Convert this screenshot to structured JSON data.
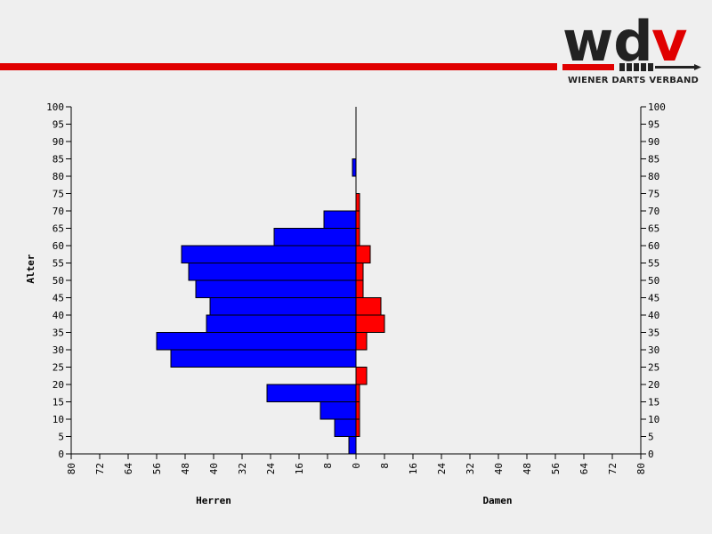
{
  "logo": {
    "mark": "wdv",
    "subtitle": "WIENER DARTS VERBAND",
    "colors": {
      "dark": "#222222",
      "red": "#e00000"
    }
  },
  "chart_data": {
    "type": "bar",
    "orientation": "horizontal-pyramid",
    "ylabel": "Alter",
    "left_label": "Herren",
    "right_label": "Damen",
    "age_groups": [
      0,
      5,
      10,
      15,
      20,
      25,
      30,
      35,
      40,
      45,
      50,
      55,
      60,
      65,
      70,
      75,
      80,
      85,
      90,
      95
    ],
    "series": [
      {
        "name": "Herren",
        "color": "#0000ff",
        "values": [
          2,
          6,
          10,
          25,
          0,
          52,
          56,
          42,
          41,
          45,
          47,
          49,
          23,
          9,
          0,
          0,
          1,
          0,
          0,
          0
        ]
      },
      {
        "name": "Damen",
        "color": "#ff0000",
        "values": [
          0,
          1,
          1,
          1,
          3,
          0,
          3,
          8,
          7,
          2,
          2,
          4,
          1,
          1,
          1,
          0,
          0,
          0,
          0,
          0
        ]
      }
    ],
    "xlim": [
      -80,
      80
    ],
    "x_ticks": [
      80,
      72,
      64,
      56,
      48,
      40,
      32,
      24,
      16,
      8,
      0,
      8,
      16,
      24,
      32,
      40,
      48,
      56,
      64,
      72,
      80
    ],
    "ylim": [
      0,
      100
    ],
    "y_ticks": [
      0,
      5,
      10,
      15,
      20,
      25,
      30,
      35,
      40,
      45,
      50,
      55,
      60,
      65,
      70,
      75,
      80,
      85,
      90,
      95,
      100
    ]
  }
}
